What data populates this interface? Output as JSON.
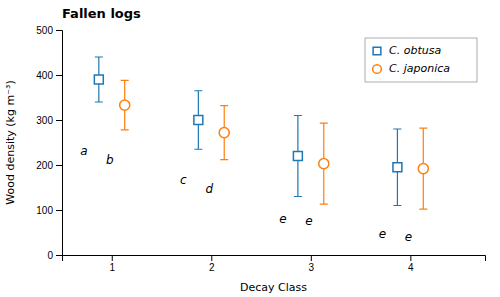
{
  "chart_data": {
    "type": "scatter",
    "title": "Fallen logs",
    "xlabel": "Decay Class",
    "ylabel": "Wood density (kg m⁻³)",
    "xlim": [
      0.5,
      4.75
    ],
    "xticks": [
      1,
      2,
      3,
      4
    ],
    "ylim": [
      0,
      500
    ],
    "yticks": [
      0,
      100,
      200,
      300,
      400,
      500
    ],
    "legend": "upper right",
    "series": [
      {
        "name": "C. obtusa",
        "marker": "square",
        "x": [
          0.87,
          1.87,
          2.87,
          3.87
        ],
        "values": [
          390,
          300,
          220,
          195
        ],
        "errors": [
          50,
          65,
          90,
          85
        ]
      },
      {
        "name": "C. japonica",
        "marker": "circle",
        "x": [
          1.13,
          2.13,
          3.13,
          4.13
        ],
        "values": [
          333,
          272,
          203,
          192
        ],
        "errors": [
          55,
          60,
          90,
          90
        ]
      }
    ],
    "annotations": [
      {
        "text": "a",
        "x": 0.72,
        "y": 230
      },
      {
        "text": "c",
        "x": 1.72,
        "y": 165
      },
      {
        "text": "e",
        "x": 2.72,
        "y": 80
      },
      {
        "text": "e",
        "x": 3.72,
        "y": 45
      },
      {
        "text": "b",
        "x": 0.98,
        "y": 210
      },
      {
        "text": "d",
        "x": 1.98,
        "y": 145
      },
      {
        "text": "e",
        "x": 2.98,
        "y": 75
      },
      {
        "text": "e",
        "x": 3.98,
        "y": 40
      }
    ]
  }
}
